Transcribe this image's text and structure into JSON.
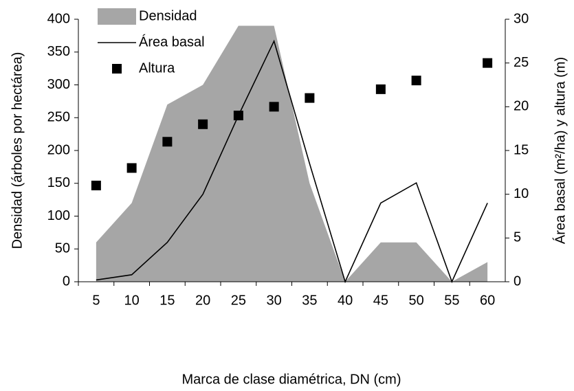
{
  "chart_data": {
    "type": "combo",
    "x_label": "Marca de clase diamétrica, DN (cm)",
    "y_label": "Densidad  (árboles por hectárea)",
    "y2_label": "Área basal (m²/ha) y altura (m)",
    "categories": [
      "5",
      "10",
      "15",
      "20",
      "25",
      "30",
      "35",
      "40",
      "45",
      "50",
      "55",
      "60"
    ],
    "series": [
      {
        "name": "Densidad",
        "kind": "area",
        "color": "#a6a6a6",
        "values": [
          60,
          120,
          270,
          300,
          390,
          390,
          150,
          0,
          60,
          60,
          0,
          30
        ]
      },
      {
        "name": "Área basal",
        "kind": "line",
        "axis": "y2",
        "color": "#000000",
        "values": [
          0.2,
          0.8,
          4.5,
          10,
          19,
          27.5,
          13.5,
          0,
          9,
          11.3,
          0,
          9
        ]
      },
      {
        "name": "Altura",
        "kind": "scatter",
        "axis": "y2",
        "color": "#000000",
        "values": [
          11,
          13,
          16,
          18,
          19,
          20,
          21,
          null,
          22,
          23,
          null,
          25
        ]
      }
    ],
    "ylim": [
      0,
      400
    ],
    "yticks": [
      0,
      50,
      100,
      150,
      200,
      250,
      300,
      350,
      400
    ],
    "y2lim": [
      0,
      30
    ],
    "y2ticks": [
      0,
      5,
      10,
      15,
      20,
      25,
      30
    ],
    "legend": "top-left"
  }
}
